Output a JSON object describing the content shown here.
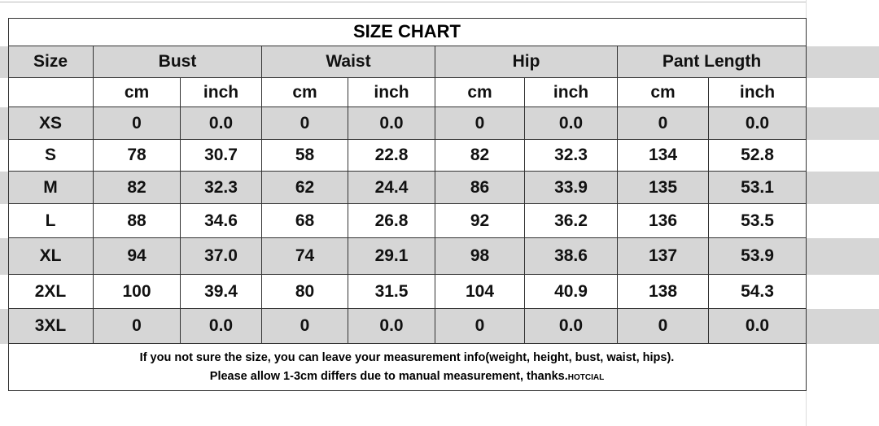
{
  "title": "SIZE CHART",
  "headers": [
    "Size",
    "Bust",
    "Waist",
    "Hip",
    "Pant Length"
  ],
  "units": [
    "cm",
    "inch",
    "cm",
    "inch",
    "cm",
    "inch",
    "cm",
    "inch"
  ],
  "rows": [
    [
      "XS",
      "0",
      "0.0",
      "0",
      "0.0",
      "0",
      "0.0",
      "0",
      "0.0"
    ],
    [
      "S",
      "78",
      "30.7",
      "58",
      "22.8",
      "82",
      "32.3",
      "134",
      "52.8"
    ],
    [
      "M",
      "82",
      "32.3",
      "62",
      "24.4",
      "86",
      "33.9",
      "135",
      "53.1"
    ],
    [
      "L",
      "88",
      "34.6",
      "68",
      "26.8",
      "92",
      "36.2",
      "136",
      "53.5"
    ],
    [
      "XL",
      "94",
      "37.0",
      "74",
      "29.1",
      "98",
      "38.6",
      "137",
      "53.9"
    ],
    [
      "2XL",
      "100",
      "39.4",
      "80",
      "31.5",
      "104",
      "40.9",
      "138",
      "54.3"
    ],
    [
      "3XL",
      "0",
      "0.0",
      "0",
      "0.0",
      "0",
      "0.0",
      "0",
      "0.0"
    ]
  ],
  "notes": [
    "If you not sure the size, you can leave your measurement info(weight, height, bust, waist, hips).",
    "Please allow 1-3cm differs due to manual measurement, thanks."
  ],
  "brand": "HOTCIAL"
}
